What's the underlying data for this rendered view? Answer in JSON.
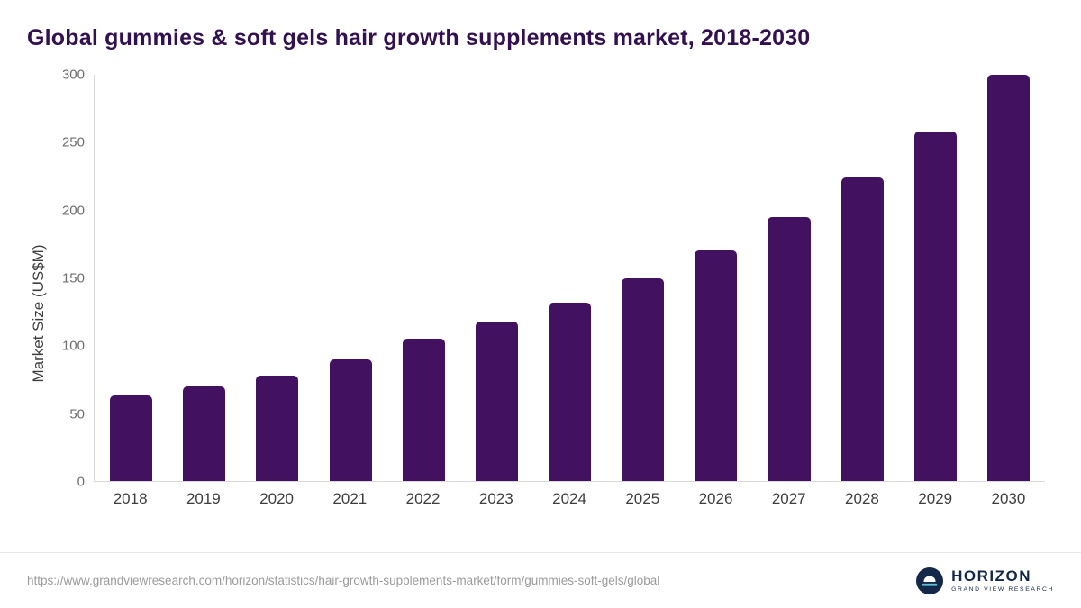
{
  "title": "Global gummies & soft gels hair growth supplements market, 2018-2030",
  "colors": {
    "bar": "#421160",
    "title": "#33104e",
    "logo_navy": "#14284a"
  },
  "chart_data": {
    "type": "bar",
    "title": "Global gummies & soft gels hair growth supplements market, 2018-2030",
    "categories": [
      "2018",
      "2019",
      "2020",
      "2021",
      "2022",
      "2023",
      "2024",
      "2025",
      "2026",
      "2027",
      "2028",
      "2029",
      "2030"
    ],
    "values": [
      63,
      70,
      78,
      90,
      105,
      118,
      132,
      150,
      170,
      195,
      224,
      258,
      300
    ],
    "xlabel": "",
    "ylabel": "Market Size (US$M)",
    "ylim": [
      0,
      300
    ],
    "yticks": [
      0,
      50,
      100,
      150,
      200,
      250,
      300
    ],
    "grid": "off",
    "legend": "none"
  },
  "footer": {
    "source_url": "https://www.grandviewresearch.com/horizon/statistics/hair-growth-supplements-market/form/gummies-soft-gels/global",
    "logo_title": "HORIZON",
    "logo_subtitle": "GRAND VIEW RESEARCH"
  }
}
